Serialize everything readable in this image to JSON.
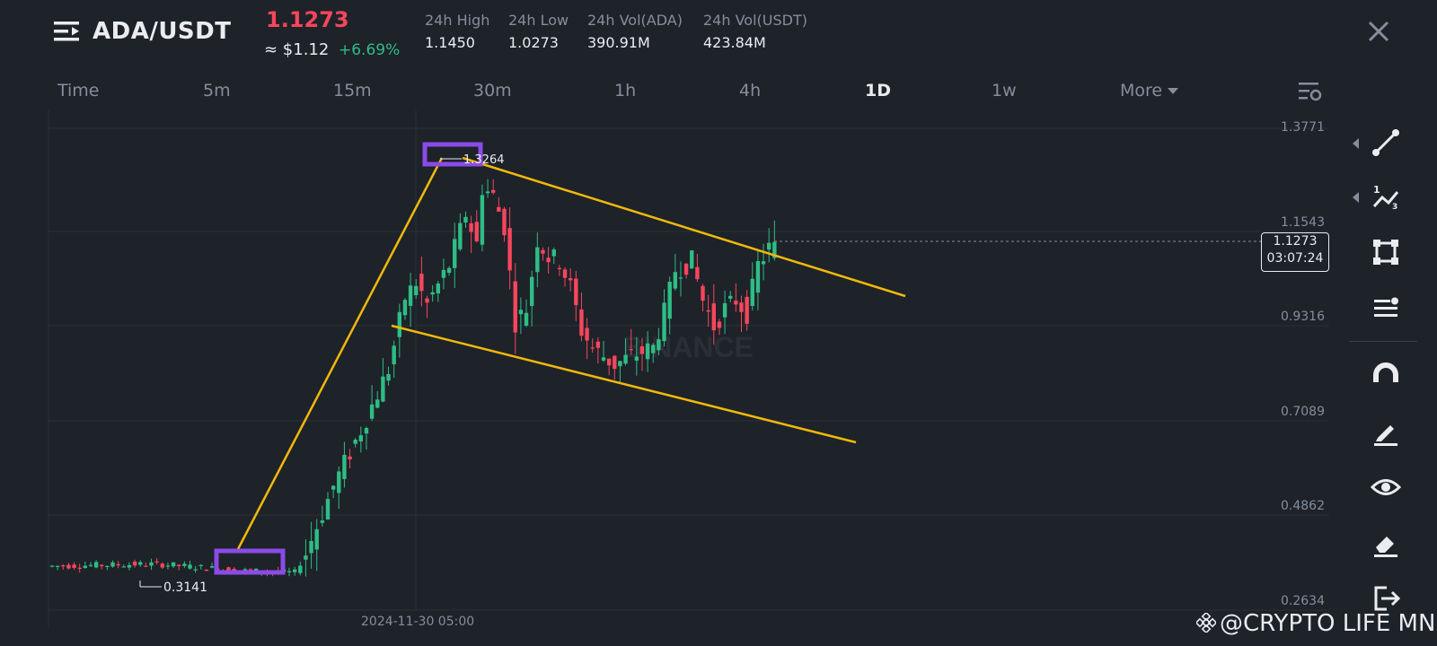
{
  "header": {
    "pair": "ADA/USDT",
    "price": "1.1273",
    "usd_price": "≈ $1.12",
    "change": "+6.69%",
    "stats": [
      {
        "label": "24h High",
        "value": "1.1450"
      },
      {
        "label": "24h Low",
        "value": "1.0273"
      },
      {
        "label": "24h Vol(ADA)",
        "value": "390.91M"
      },
      {
        "label": "24h Vol(USDT)",
        "value": "423.84M"
      }
    ]
  },
  "timeframes": [
    "Time",
    "5m",
    "15m",
    "30m",
    "1h",
    "4h",
    "1D",
    "1w",
    "More"
  ],
  "active_timeframe": "1D",
  "chart": {
    "price_axis": [
      "1.3771",
      "1.1543",
      "0.9316",
      "0.7089",
      "0.4862",
      "0.2634"
    ],
    "current_price": "1.1273",
    "countdown": "03:07:24",
    "date_label": "2024-11-30 05:00",
    "high_label": "1.3264",
    "low_label": "0.3141",
    "background_watermark": "BINANCE"
  },
  "toolbar": [
    "trendline-icon",
    "fib-icon",
    "rectangle-icon",
    "alert-list-icon",
    "magnet-icon",
    "pencil-icon",
    "eye-icon",
    "eraser-icon",
    "exit-icon"
  ],
  "watermark": "@CRYPTO LIFE MNE",
  "colors": {
    "background": "#1e2229",
    "up": "#2ebd85",
    "down": "#f6465d",
    "trendline": "#f0b90b",
    "highlight_box": "#8a4be8"
  }
}
